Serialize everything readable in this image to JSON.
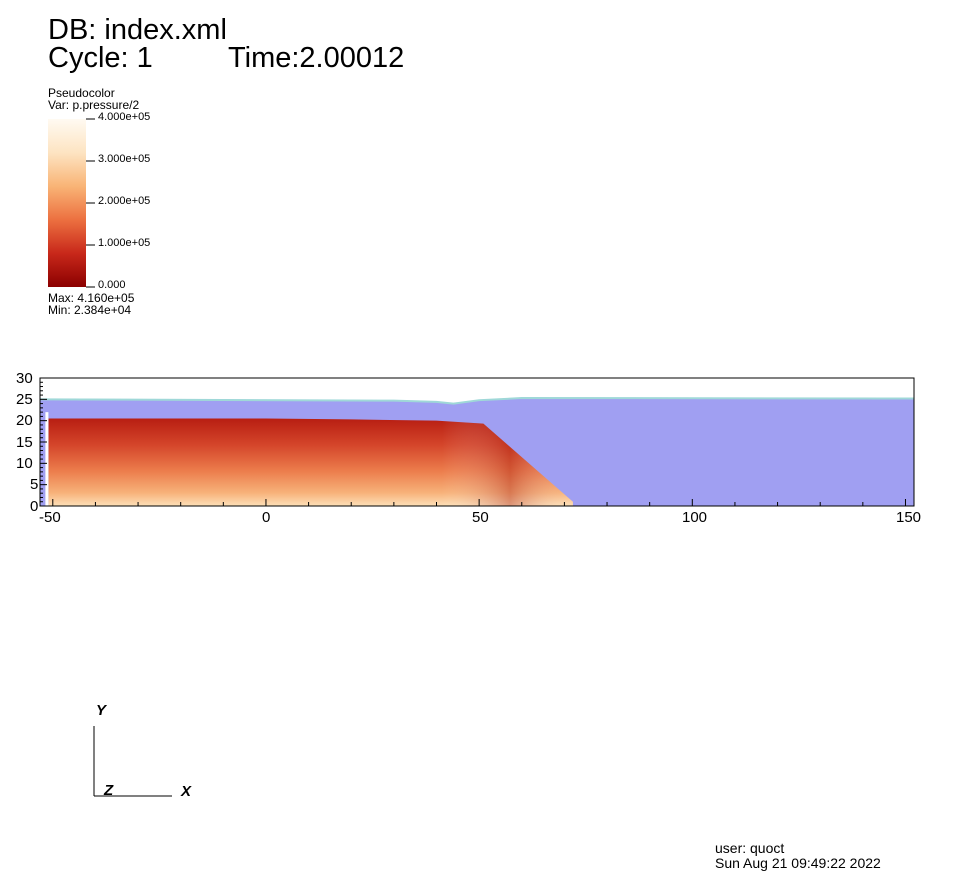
{
  "header": {
    "db_label": "DB: index.xml",
    "cycle_label": "Cycle: 1",
    "time_label": "Time:2.00012"
  },
  "legend": {
    "plot_type": "Pseudocolor",
    "var_label": "Var: p.pressure/2",
    "ticks": [
      "4.000e+05",
      "3.000e+05",
      "2.000e+05",
      "1.000e+05",
      "0.000"
    ],
    "max_label": "Max:  4.160e+05",
    "min_label": "Min:  2.384e+04",
    "colors": [
      "#8b0000",
      "#c8281a",
      "#ec7040",
      "#f9b476",
      "#fde4c2",
      "#fffaf2"
    ]
  },
  "chart_data": {
    "type": "heatmap",
    "title": "",
    "xlabel": "",
    "ylabel": "",
    "xlim": [
      -53,
      152
    ],
    "ylim": [
      0,
      30
    ],
    "x_ticks": [
      -50,
      0,
      50,
      100,
      150
    ],
    "y_ticks": [
      0,
      5,
      10,
      15,
      20,
      25,
      30
    ],
    "variable": "p.pressure/2",
    "color_range": [
      0,
      400000
    ],
    "water_color": "#a09ff2",
    "water_surface": [
      [
        -53,
        25
      ],
      [
        30,
        24.7
      ],
      [
        40,
        24.4
      ],
      [
        44,
        24.0
      ],
      [
        50,
        24.8
      ],
      [
        60,
        25.3
      ],
      [
        152,
        25.2
      ]
    ],
    "material_region": [
      [
        -51,
        0
      ],
      [
        -51,
        20.5
      ],
      [
        0,
        20.5
      ],
      [
        20,
        20.3
      ],
      [
        40,
        20.0
      ],
      [
        51,
        19.3
      ],
      [
        72,
        1
      ],
      [
        72,
        0
      ]
    ],
    "wall_x": -51.5,
    "wall_top": 22
  },
  "triad": {
    "y": "Y",
    "z": "Z",
    "x": "X"
  },
  "footer": {
    "user_label": "user: quoct",
    "date_label": "Sun Aug 21 09:49:22 2022"
  }
}
